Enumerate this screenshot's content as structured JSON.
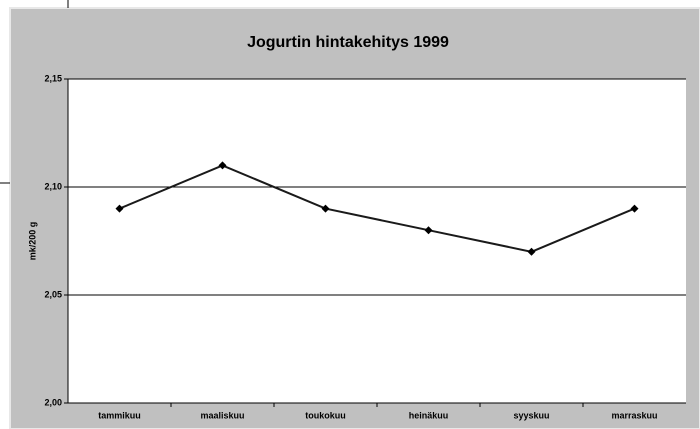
{
  "chart_data": {
    "type": "line",
    "title": "Jogurtin hintakehitys 1999",
    "y_label": "mk/200 g",
    "categories": [
      "tammikuu",
      "maaliskuu",
      "toukokuu",
      "heinäkuu",
      "syyskuu",
      "marraskuu"
    ],
    "values": [
      2.09,
      2.11,
      2.09,
      2.08,
      2.07,
      2.09
    ],
    "color": "#1a1a1a",
    "ylim": [
      2.0,
      2.15
    ],
    "yticks": [
      {
        "value": 2.0,
        "label": "2,00"
      },
      {
        "value": 2.05,
        "label": "2,05"
      },
      {
        "value": 2.1,
        "label": "2,10"
      },
      {
        "value": 2.15,
        "label": "2,15"
      }
    ],
    "grid": true
  }
}
